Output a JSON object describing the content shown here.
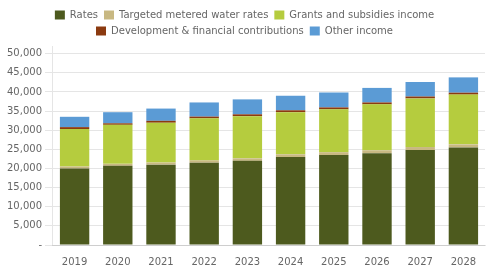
{
  "chart_data": {
    "type": "bar",
    "stacked": true,
    "categories": [
      "2019",
      "2020",
      "2021",
      "2022",
      "2023",
      "2024",
      "2025",
      "2026",
      "2027",
      "2028"
    ],
    "series": [
      {
        "name": "Rates",
        "color": "#4d5a1e",
        "values": [
          20000,
          20700,
          21000,
          21500,
          22000,
          23000,
          23500,
          24000,
          24800,
          25500
        ]
      },
      {
        "name": "Targeted metered water rates",
        "color": "#c8b882",
        "values": [
          500,
          500,
          550,
          600,
          650,
          700,
          750,
          750,
          800,
          800
        ]
      },
      {
        "name": "Grants and subsidies income",
        "color": "#b5cc3e",
        "values": [
          9800,
          10200,
          10400,
          11000,
          11000,
          11000,
          11200,
          12000,
          12700,
          13000
        ]
      },
      {
        "name": "Development & financial contributions",
        "color": "#8b3a10",
        "values": [
          500,
          400,
          500,
          450,
          500,
          500,
          500,
          500,
          500,
          500
        ]
      },
      {
        "name": "Other income",
        "color": "#5b9bd5",
        "values": [
          2700,
          2900,
          3200,
          3700,
          3900,
          3800,
          3900,
          3800,
          3800,
          4000
        ]
      }
    ],
    "ylim": [
      0,
      52000
    ],
    "yticks": [
      {
        "value": 0,
        "label": "-"
      },
      {
        "value": 5000,
        "label": "5,000"
      },
      {
        "value": 10000,
        "label": "10,000"
      },
      {
        "value": 15000,
        "label": "15,000"
      },
      {
        "value": 20000,
        "label": "20,000"
      },
      {
        "value": 25000,
        "label": "25,000"
      },
      {
        "value": 30000,
        "label": "30,000"
      },
      {
        "value": 35000,
        "label": "35,000"
      },
      {
        "value": 40000,
        "label": "40,000"
      },
      {
        "value": 45000,
        "label": "45,000"
      },
      {
        "value": 50000,
        "label": "50,000"
      }
    ],
    "grid": true,
    "legend": "top"
  }
}
